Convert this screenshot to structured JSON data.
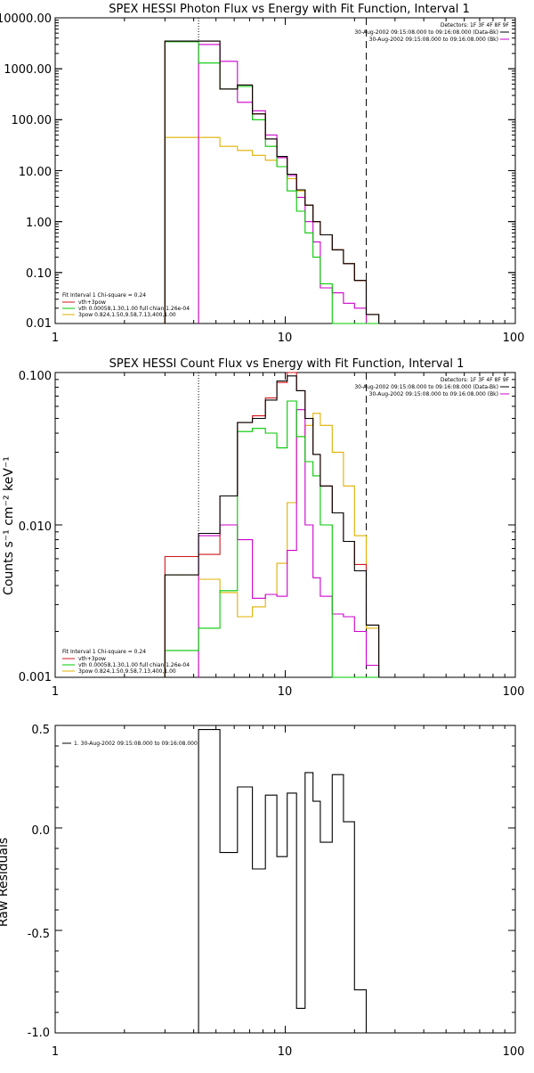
{
  "chart_data": [
    {
      "type": "line",
      "title": "SPEX HESSI Photon Flux vs Energy with Fit Function, Interval 1",
      "xlabel": "",
      "ylabel": "",
      "xscale": "log",
      "yscale": "log",
      "xlim": [
        1,
        100
      ],
      "ylim": [
        0.01,
        10000
      ],
      "x_tick_labels": [
        "1",
        "10",
        "100"
      ],
      "y_tick_labels": [
        "0.01",
        "0.10",
        "1.00",
        "10.00",
        "100.00",
        "1000.00",
        "10000.00"
      ],
      "header_lines": [
        "Detectors: 1F 3F 4F 8F 9F",
        "30-Aug-2002 09:15:08.000 to 09:16:08.000 (Data-Bk)",
        "30-Aug-2002 09:15:08.000 to 09:16:08.000 (Bk)"
      ],
      "legend_lines": [
        "Fit Interval 1    Chi-square = 0.24",
        "vth+3pow",
        "vth 0.00058,1.30,1.00  full chian 1.26e-04",
        "3pow 0.824,1.50,9.58,7.13,400,1.00"
      ],
      "vlines": [
        {
          "x": 4.2,
          "style": "dotted"
        },
        {
          "x": 22.5,
          "style": "dashed"
        }
      ],
      "edges": [
        3.0,
        4.2,
        5.2,
        6.2,
        7.2,
        8.2,
        9.2,
        10.2,
        11.2,
        12.2,
        13.2,
        14.2,
        16.0,
        17.9,
        20.0,
        22.5,
        25.5
      ],
      "series": [
        {
          "color": "#000000",
          "values": [
            3500,
            3500,
            400,
            480,
            130,
            42,
            19,
            8.5,
            4.2,
            2.1,
            1.0,
            0.55,
            0.28,
            0.15,
            0.07,
            0.015
          ]
        },
        {
          "color": "#d0141a",
          "values": [
            3500,
            3500,
            400,
            480,
            130,
            42,
            19,
            8.5,
            4.2,
            2.1,
            1.0,
            0.55,
            0.28,
            0.15,
            0.07,
            0.015
          ]
        },
        {
          "color": "#00c800",
          "values": [
            3400,
            1300,
            400,
            450,
            100,
            30,
            12,
            4.0,
            1.6,
            0.6,
            0.2,
            0.06,
            0.008,
            0.008,
            0.008,
            0.008
          ]
        },
        {
          "color": "#cc00cc",
          "values": [
            null,
            3000,
            1400,
            220,
            150,
            50,
            18,
            8,
            3.0,
            1.0,
            0.4,
            0.05,
            0.04,
            0.025,
            0.02,
            0.008
          ]
        },
        {
          "color": "#e0b000",
          "values": [
            45,
            45,
            30,
            25,
            20,
            16,
            12,
            7,
            4.0,
            2.1,
            1.0,
            0.55,
            0.28,
            0.15,
            0.07,
            0.015
          ]
        }
      ]
    },
    {
      "type": "line",
      "title": "SPEX HESSI Count Flux vs Energy with Fit Function, Interval 1",
      "xlabel": "",
      "ylabel": "Counts s⁻¹ cm⁻² keV⁻¹",
      "xscale": "log",
      "yscale": "log",
      "xlim": [
        1,
        100
      ],
      "ylim": [
        0.001,
        0.1
      ],
      "x_tick_labels": [
        "1",
        "10",
        "100"
      ],
      "y_tick_labels": [
        "0.001",
        "0.010",
        "0.100"
      ],
      "header_lines": [
        "Detectors: 1F 3F 4F 8F 9F",
        "30-Aug-2002 09:15:08.000 to 09:16:08.000 (Data-Bk)",
        "30-Aug-2002 09:15:08.000 to 09:16:08.000 (Bk)"
      ],
      "legend_lines": [
        "Fit Interval 1    Chi-square = 0.24",
        "vth+3pow",
        "vth 0.00058,1.30,1.00  full chian 1.26e-04",
        "3pow 0.824,1.50,9.58,7.13,400,1.00"
      ],
      "vlines": [
        {
          "x": 4.2,
          "style": "dotted"
        },
        {
          "x": 22.5,
          "style": "dashed"
        }
      ],
      "edges": [
        3.0,
        4.2,
        5.2,
        6.2,
        7.2,
        8.2,
        9.2,
        10.2,
        11.2,
        12.2,
        13.2,
        14.2,
        16.0,
        17.9,
        20.0,
        22.5,
        25.5
      ],
      "series": [
        {
          "color": "#000000",
          "values": [
            0.0047,
            0.0088,
            0.0155,
            0.047,
            0.05,
            0.066,
            0.088,
            0.095,
            0.076,
            0.05,
            0.029,
            0.018,
            0.012,
            0.0078,
            0.005,
            0.0022
          ]
        },
        {
          "color": "#d0141a",
          "values": [
            0.0062,
            0.0064,
            0.0155,
            0.047,
            0.052,
            0.068,
            0.086,
            0.1,
            0.076,
            0.05,
            0.029,
            0.018,
            0.012,
            0.0078,
            0.0055,
            0.0022
          ]
        },
        {
          "color": "#00c800",
          "values": [
            0.0015,
            0.0021,
            0.0037,
            0.041,
            0.043,
            0.04,
            0.032,
            0.065,
            0.038,
            0.026,
            0.021,
            0.01,
            0.001,
            0.001,
            0.001,
            0.001
          ]
        },
        {
          "color": "#cc00cc",
          "values": [
            null,
            0.0085,
            0.01,
            0.008,
            0.0033,
            0.0035,
            0.0034,
            0.0068,
            0.057,
            0.01,
            0.0045,
            0.0034,
            0.0026,
            0.0025,
            0.002,
            0.0012
          ]
        },
        {
          "color": "#e0b000",
          "values": [
            0.0047,
            0.0044,
            0.0036,
            0.0025,
            0.0029,
            0.0035,
            0.0056,
            0.014,
            0.038,
            0.045,
            0.054,
            0.045,
            0.03,
            0.018,
            0.0085,
            0.0021
          ]
        }
      ]
    },
    {
      "type": "line",
      "title": "",
      "xlabel": "",
      "ylabel": "Raw Residuals",
      "xscale": "log",
      "yscale": "linear",
      "xlim": [
        1,
        100
      ],
      "ylim": [
        -1.0,
        0.5
      ],
      "x_tick_labels": [
        "1",
        "10",
        "100"
      ],
      "y_tick_labels": [
        "-1.0",
        "-0.5",
        "0.0",
        "0.5"
      ],
      "legend_lines": [
        "1. 30-Aug-2002 09:15:08.000 to 09:16:08.000"
      ],
      "edges": [
        4.2,
        5.2,
        6.2,
        7.2,
        8.2,
        9.2,
        10.2,
        11.2,
        12.2,
        13.2,
        14.2,
        16.0,
        17.9,
        20.0,
        22.5
      ],
      "series": [
        {
          "color": "#000000",
          "values": [
            0.48,
            -0.12,
            0.2,
            -0.2,
            0.16,
            -0.14,
            0.17,
            -0.88,
            0.27,
            0.13,
            -0.07,
            0.26,
            0.03,
            -0.79
          ]
        }
      ]
    }
  ]
}
